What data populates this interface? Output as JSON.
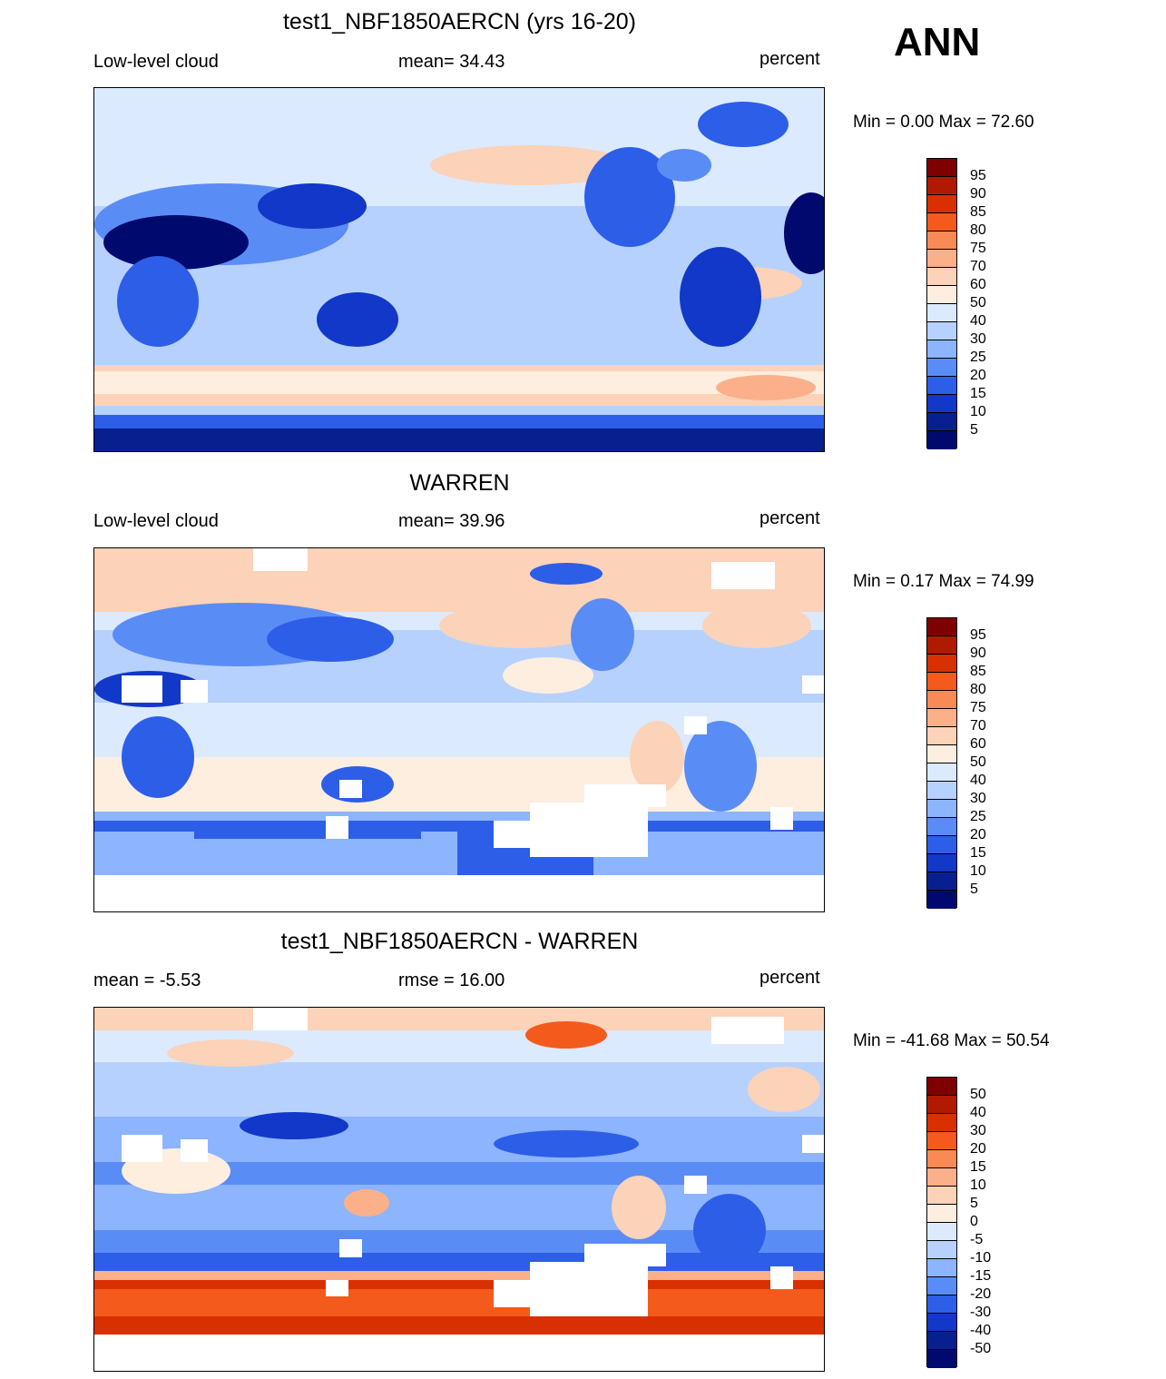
{
  "season": "ANN",
  "panels": [
    {
      "id": "model",
      "title": "test1_NBF1850AERCN (yrs 16-20)",
      "left_label": "Low-level cloud",
      "center_label": "mean=  34.43",
      "units": "percent",
      "minmax": "Min =   0.00 Max =  72.60",
      "levels": [
        "95",
        "90",
        "85",
        "80",
        "75",
        "70",
        "60",
        "50",
        "40",
        "30",
        "25",
        "20",
        "15",
        "10",
        "5"
      ]
    },
    {
      "id": "obs",
      "title": "WARREN",
      "left_label": "Low-level cloud",
      "center_label": "mean=  39.96",
      "units": "percent",
      "minmax": "Min =   0.17 Max =  74.99",
      "levels": [
        "95",
        "90",
        "85",
        "80",
        "75",
        "70",
        "60",
        "50",
        "40",
        "30",
        "25",
        "20",
        "15",
        "10",
        "5"
      ]
    },
    {
      "id": "diff",
      "title": "test1_NBF1850AERCN - WARREN",
      "left_label": "mean =  -5.53",
      "center_label": "rmse =  16.00",
      "units": "percent",
      "minmax": "Min = -41.68 Max =  50.54",
      "levels": [
        "50",
        "40",
        "30",
        "20",
        "15",
        "10",
        "5",
        "0",
        "-5",
        "-10",
        "-15",
        "-20",
        "-30",
        "-40",
        "-50"
      ]
    }
  ],
  "colorbar_colors": [
    "#7f0000",
    "#b01a00",
    "#d83000",
    "#f45a1c",
    "#f88a55",
    "#fbb08a",
    "#fcd2b8",
    "#fdeedf",
    "#dceaff",
    "#b7d1ff",
    "#8cb4ff",
    "#5a8cf5",
    "#2d5ee8",
    "#1138c8",
    "#08208f",
    "#000a6e"
  ]
}
